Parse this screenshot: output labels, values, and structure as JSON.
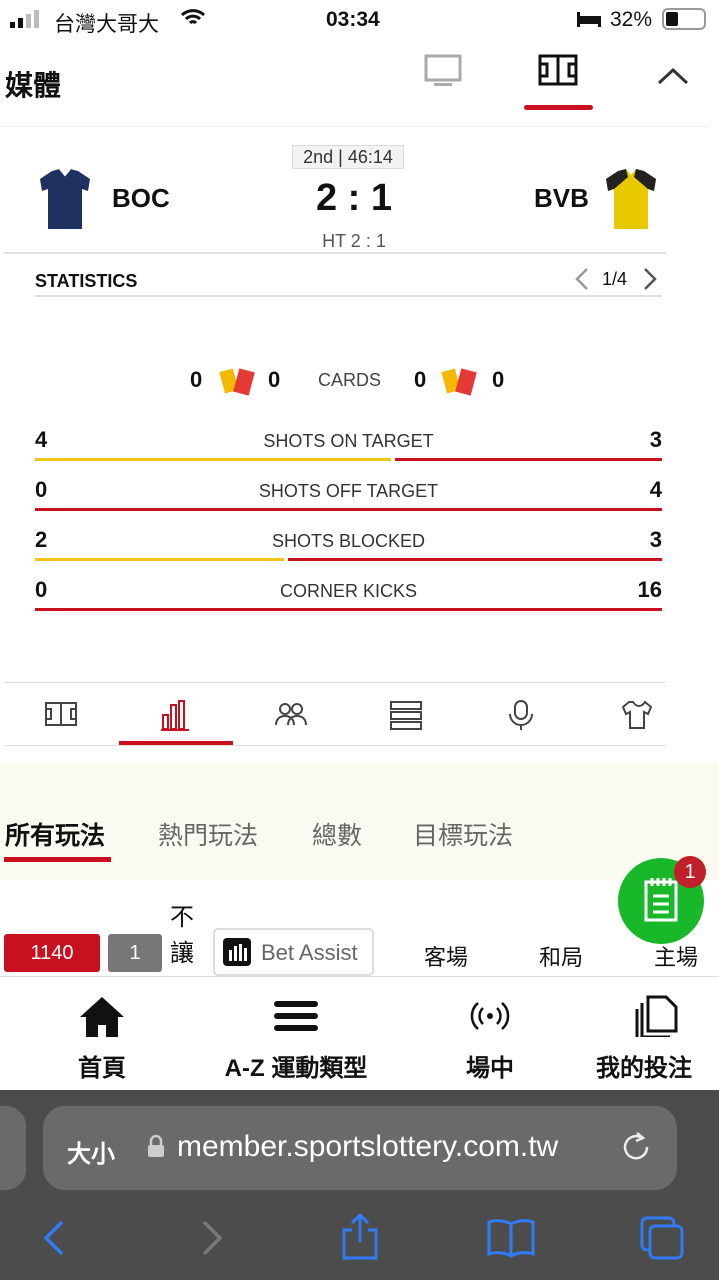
{
  "status_bar": {
    "carrier": "台灣大哥大",
    "time": "03:34",
    "battery": "32%"
  },
  "header": {
    "title": "媒體",
    "tabs": [
      {
        "icon": "monitor-icon",
        "active": false
      },
      {
        "icon": "pitch-icon",
        "active": true
      }
    ],
    "collapse_icon": "chevron-up-icon"
  },
  "match": {
    "period": "2nd | 46:14",
    "home": "BOC",
    "away": "BVB",
    "score": "2 : 1",
    "ht": "HT 2 : 1",
    "home_color": "#1e3160",
    "away_color": "#e8c900"
  },
  "statistics": {
    "title": "STATISTICS",
    "page": "1/4",
    "cards": {
      "label": "CARDS",
      "home_yellow": "0",
      "home_red": "0",
      "away_yellow": "0",
      "away_red": "0"
    },
    "rows": [
      {
        "label": "SHOTS ON TARGET",
        "home": 4,
        "away": 3
      },
      {
        "label": "SHOTS OFF TARGET",
        "home": 0,
        "away": 4
      },
      {
        "label": "SHOTS BLOCKED",
        "home": 2,
        "away": 3
      },
      {
        "label": "CORNER KICKS",
        "home": 0,
        "away": 16
      }
    ],
    "home_bar_color": "#f0c419",
    "away_bar_color": "#c8101e"
  },
  "media_tabs": [
    {
      "icon": "pitch-icon"
    },
    {
      "icon": "bar-chart-icon",
      "active": true
    },
    {
      "icon": "lineup-icon"
    },
    {
      "icon": "list-icon"
    },
    {
      "icon": "microphone-icon"
    },
    {
      "icon": "shirt-icon"
    }
  ],
  "bet_tabs": [
    {
      "label": "所有玩法",
      "active": true
    },
    {
      "label": "熱門玩法"
    },
    {
      "label": "總數"
    },
    {
      "label": "目標玩法"
    }
  ],
  "bet_row": {
    "code": "1140",
    "num": "1",
    "no_handicap": "不讓",
    "assist": "Bet Assist",
    "cols": [
      "客場",
      "和局",
      "主場"
    ]
  },
  "betslip": {
    "count": "1"
  },
  "bottom_nav": [
    {
      "label": "首頁",
      "icon": "home-icon"
    },
    {
      "label": "A-Z 運動類型",
      "icon": "menu-icon"
    },
    {
      "label": "場中",
      "icon": "live-icon"
    },
    {
      "label": "我的投注",
      "icon": "documents-icon"
    }
  ],
  "browser": {
    "text_size": "大小",
    "url": "member.sportslottery.com.tw"
  }
}
